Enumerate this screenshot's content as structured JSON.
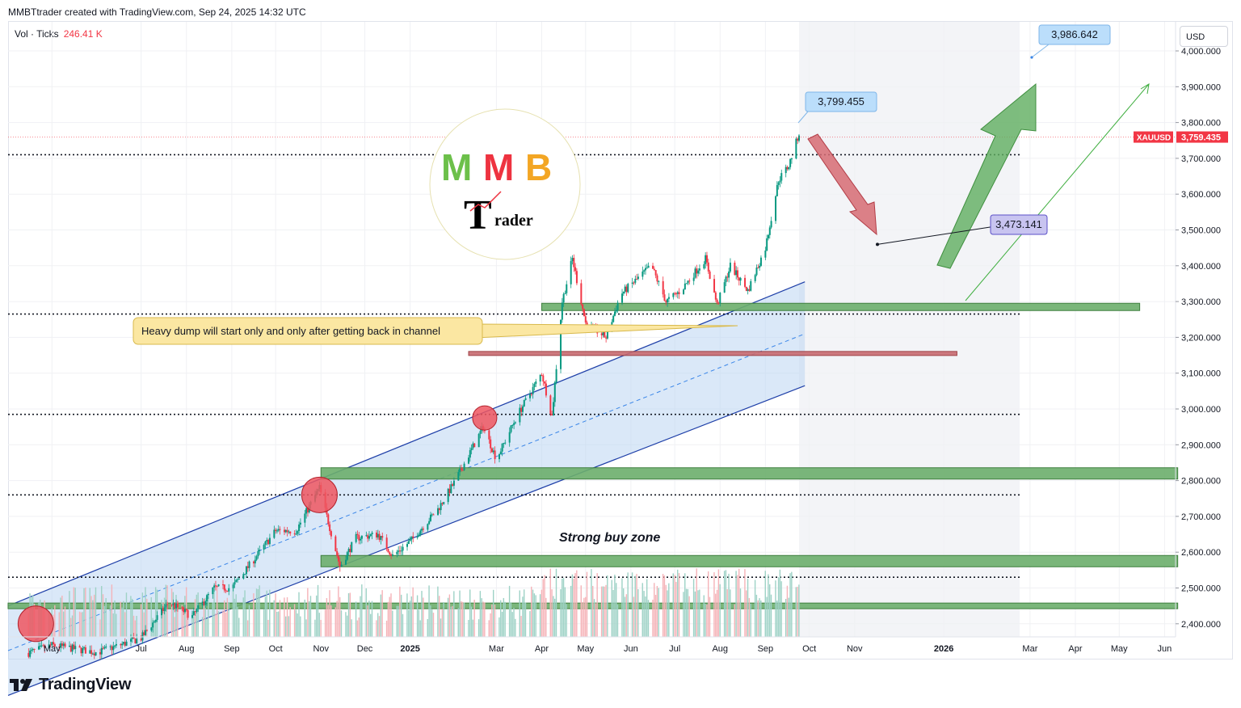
{
  "header": {
    "credit": "MMBTtrader created with TradingView.com, Sep 24, 2025 14:32 UTC"
  },
  "volume_legend": {
    "label": "Vol · Ticks",
    "value": "246.41 K"
  },
  "currency": "USD",
  "footer": {
    "brand": "TradingView"
  },
  "logo": {
    "letters": [
      "M",
      "M",
      "B"
    ],
    "sub_letter": "T",
    "sub_text": "rader"
  },
  "colors": {
    "up": "#089981",
    "down": "#f23645",
    "channel_fill": "#bbd6f3",
    "channel_line": "#1e3fa8",
    "zone_green": "#5a9e5a",
    "zone_red": "#a04448",
    "arrow_up": "#5fae5f",
    "arrow_down": "#d66b73",
    "callout": "#fbe7a2",
    "label_blue": "#bbdefb",
    "label_purple": "#c8c4f0"
  },
  "chart_data": {
    "type": "candlestick",
    "symbol": "XAUUSD",
    "last_price": "3,759.435",
    "ylim": [
      2350,
      4050
    ],
    "y_ticks": [
      "4,000.000",
      "3,900.000",
      "3,800.000",
      "3,700.000",
      "3,600.000",
      "3,500.000",
      "3,400.000",
      "3,300.000",
      "3,200.000",
      "3,100.000",
      "3,000.000",
      "2,900.000",
      "2,800.000",
      "2,700.000",
      "2,600.000",
      "2,500.000",
      "2,400.000"
    ],
    "y_tick_values": [
      4000,
      3900,
      3800,
      3700,
      3600,
      3500,
      3400,
      3300,
      3200,
      3100,
      3000,
      2900,
      2800,
      2700,
      2600,
      2500,
      2400
    ],
    "x_ticks": [
      {
        "label": "May",
        "date": "2024-05-01",
        "bold": false
      },
      {
        "label": "Jul",
        "date": "2024-07-01",
        "bold": false
      },
      {
        "label": "Aug",
        "date": "2024-08-01",
        "bold": false
      },
      {
        "label": "Sep",
        "date": "2024-09-01",
        "bold": false
      },
      {
        "label": "Oct",
        "date": "2024-10-01",
        "bold": false
      },
      {
        "label": "Nov",
        "date": "2024-11-01",
        "bold": false
      },
      {
        "label": "Dec",
        "date": "2024-12-01",
        "bold": false
      },
      {
        "label": "2025",
        "date": "2025-01-01",
        "bold": true
      },
      {
        "label": "Mar",
        "date": "2025-03-01",
        "bold": false
      },
      {
        "label": "Apr",
        "date": "2025-04-01",
        "bold": false
      },
      {
        "label": "May",
        "date": "2025-05-01",
        "bold": false
      },
      {
        "label": "Jun",
        "date": "2025-06-01",
        "bold": false
      },
      {
        "label": "Jul",
        "date": "2025-07-01",
        "bold": false
      },
      {
        "label": "Aug",
        "date": "2025-08-01",
        "bold": false
      },
      {
        "label": "Sep",
        "date": "2025-09-01",
        "bold": false
      },
      {
        "label": "Oct",
        "date": "2025-10-01",
        "bold": false
      },
      {
        "label": "Nov",
        "date": "2025-11-01",
        "bold": false
      },
      {
        "label": "2026",
        "date": "2026-01-01",
        "bold": true
      },
      {
        "label": "Mar",
        "date": "2026-03-01",
        "bold": false
      },
      {
        "label": "Apr",
        "date": "2026-04-01",
        "bold": false
      },
      {
        "label": "May",
        "date": "2026-05-01",
        "bold": false
      },
      {
        "label": "Jun",
        "date": "2026-06-01",
        "bold": false
      }
    ],
    "price_path": [
      [
        "2024-04-01",
        2300
      ],
      [
        "2024-05-01",
        2340
      ],
      [
        "2024-06-01",
        2320
      ],
      [
        "2024-07-01",
        2360
      ],
      [
        "2024-07-20",
        2460
      ],
      [
        "2024-08-05",
        2420
      ],
      [
        "2024-08-20",
        2500
      ],
      [
        "2024-09-01",
        2500
      ],
      [
        "2024-09-20",
        2600
      ],
      [
        "2024-10-01",
        2660
      ],
      [
        "2024-10-15",
        2660
      ],
      [
        "2024-10-31",
        2780
      ],
      [
        "2024-11-05",
        2700
      ],
      [
        "2024-11-14",
        2560
      ],
      [
        "2024-11-25",
        2640
      ],
      [
        "2024-12-10",
        2650
      ],
      [
        "2024-12-20",
        2590
      ],
      [
        "2025-01-01",
        2630
      ],
      [
        "2025-01-20",
        2720
      ],
      [
        "2025-02-01",
        2800
      ],
      [
        "2025-02-20",
        2950
      ],
      [
        "2025-03-01",
        2860
      ],
      [
        "2025-03-15",
        2980
      ],
      [
        "2025-04-01",
        3100
      ],
      [
        "2025-04-08",
        2980
      ],
      [
        "2025-04-15",
        3300
      ],
      [
        "2025-04-22",
        3420
      ],
      [
        "2025-05-01",
        3240
      ],
      [
        "2025-05-15",
        3200
      ],
      [
        "2025-05-25",
        3320
      ],
      [
        "2025-06-15",
        3400
      ],
      [
        "2025-06-25",
        3300
      ],
      [
        "2025-07-05",
        3330
      ],
      [
        "2025-07-22",
        3420
      ],
      [
        "2025-07-30",
        3290
      ],
      [
        "2025-08-08",
        3400
      ],
      [
        "2025-08-20",
        3330
      ],
      [
        "2025-09-01",
        3450
      ],
      [
        "2025-09-10",
        3640
      ],
      [
        "2025-09-17",
        3680
      ],
      [
        "2025-09-24",
        3770
      ]
    ],
    "levels_dotted": [
      3710,
      3265,
      2985,
      2760,
      2530
    ],
    "zones": [
      {
        "type": "green",
        "from": "2025-04-01",
        "to": "2026-05-15",
        "price": 3285
      },
      {
        "type": "red",
        "from": "2025-02-10",
        "to": "2026-01-10",
        "price": 3155
      },
      {
        "type": "green",
        "from": "2024-11-01",
        "to": "2026-06-10",
        "price": 2820
      },
      {
        "type": "green",
        "from": "2024-11-01",
        "to": "2026-06-10",
        "price": 2575
      },
      {
        "type": "green",
        "from": "2024-04-01",
        "to": "2026-06-10",
        "price": 2450
      }
    ],
    "channel": {
      "from": "2024-04-01",
      "to": "2025-09-28",
      "upper": [
        2450,
        3355
      ],
      "lower": [
        2200,
        3065
      ]
    },
    "circles": [
      {
        "date": "2024-04-20",
        "price": 2400
      },
      {
        "date": "2024-10-31",
        "price": 2760
      },
      {
        "date": "2025-02-21",
        "price": 2975
      }
    ],
    "annotations": {
      "callout": "Heavy dump will start only and only after getting back in channel",
      "buy_zone": "Strong buy zone",
      "label_high": "3,799.455",
      "label_target": "3,986.642",
      "label_mid": "3,473.141"
    }
  }
}
